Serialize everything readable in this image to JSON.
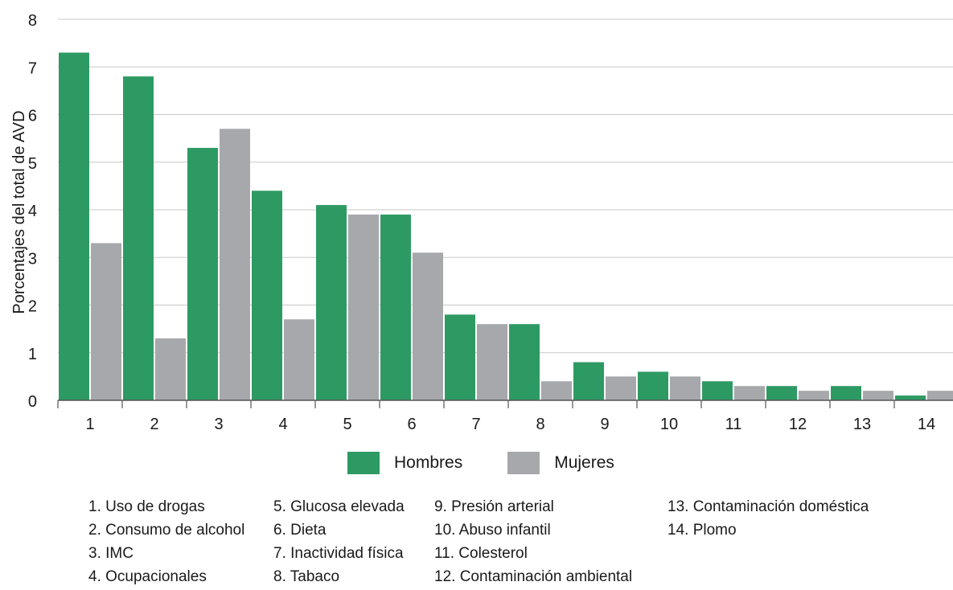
{
  "chart_data": {
    "type": "bar",
    "ylabel": "Porcentajes del total de AVD",
    "ylim": [
      0,
      8
    ],
    "yticks": [
      "0",
      "1",
      "2",
      "3",
      "4",
      "5",
      "6",
      "7",
      "8"
    ],
    "grid": true,
    "categories": [
      "1",
      "2",
      "3",
      "4",
      "5",
      "6",
      "7",
      "8",
      "9",
      "10",
      "11",
      "12",
      "13",
      "14"
    ],
    "series": [
      {
        "name": "Hombres",
        "color": "#2e9a63",
        "values": [
          7.3,
          6.8,
          5.3,
          4.4,
          4.1,
          3.9,
          1.8,
          1.6,
          0.8,
          0.6,
          0.4,
          0.3,
          0.3,
          0.1
        ]
      },
      {
        "name": "Mujeres",
        "color": "#a7a8ab",
        "values": [
          3.3,
          1.3,
          5.7,
          1.7,
          3.9,
          3.1,
          1.6,
          0.4,
          0.5,
          0.5,
          0.3,
          0.2,
          0.2,
          0.2
        ]
      }
    ],
    "legend_position": "bottom"
  },
  "notes": {
    "columns": [
      [
        "1. Uso de drogas",
        "2. Consumo de alcohol",
        "3. IMC",
        "4. Ocupacionales"
      ],
      [
        "5. Glucosa elevada",
        "6. Dieta",
        "7. Inactividad física",
        "8. Tabaco"
      ],
      [
        "9.   Presión arterial",
        "10. Abuso infantil",
        "11. Colesterol",
        "12. Contaminación ambiental"
      ],
      [
        "13. Contaminación doméstica",
        "14. Plomo"
      ]
    ]
  }
}
